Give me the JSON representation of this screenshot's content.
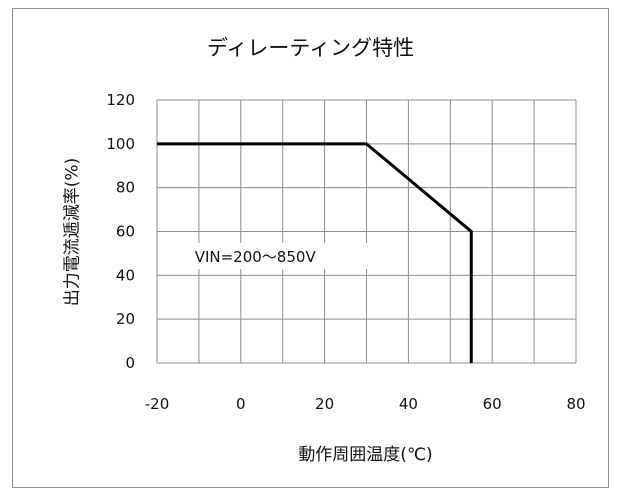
{
  "chart_data": {
    "type": "line",
    "title": "ディレーティング特性",
    "xlabel": "動作周囲温度(℃)",
    "ylabel": "出力電流逓減率(%)",
    "xlim": [
      -20,
      80
    ],
    "ylim": [
      0,
      120
    ],
    "xticks": [
      "-20",
      "0",
      "20",
      "40",
      "60",
      "80"
    ],
    "yticks": [
      "0",
      "20",
      "40",
      "60",
      "80",
      "100",
      "120"
    ],
    "grid": true,
    "x_minor_step": 10,
    "series": [
      {
        "points": [
          [
            -20,
            100
          ],
          [
            30,
            100
          ],
          [
            55,
            60
          ],
          [
            55,
            0
          ]
        ],
        "color": "#000000"
      }
    ],
    "annotations": [
      {
        "text": "VIN=200～850V",
        "x": -11,
        "y": 47
      }
    ]
  }
}
